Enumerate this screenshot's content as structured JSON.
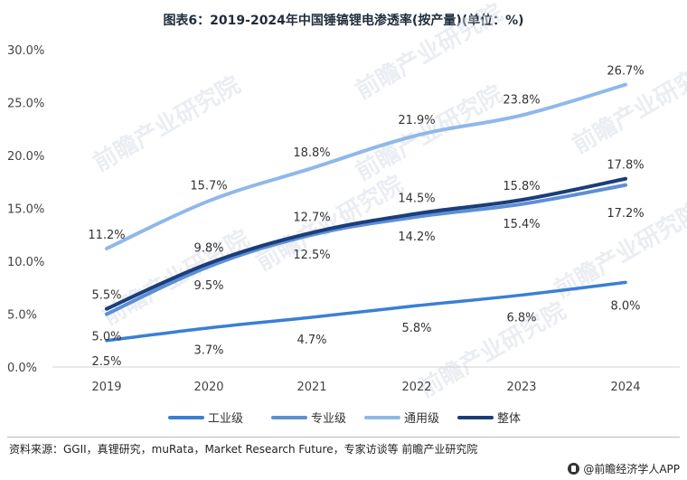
{
  "title": "图表6：2019-2024年中国锤镐锂电渗透率(按产量)(单位：%)",
  "footer": {
    "source": "资料来源：GGII，真锂研究，muRata，Market Research Future，专家访谈等 前瞻产业研究院",
    "brand": "@前瞻经济学人APP"
  },
  "watermark": "前瞻产业研究院",
  "chart_data": {
    "type": "line",
    "title": "图表6：2019-2024年中国锤镐锂电渗透率(按产量)(单位：%)",
    "xlabel": "",
    "ylabel": "",
    "categories": [
      "2019",
      "2020",
      "2021",
      "2022",
      "2023",
      "2024"
    ],
    "ylim": [
      0,
      30
    ],
    "yticks": [
      0,
      5,
      10,
      15,
      20,
      25,
      30
    ],
    "ytick_labels": [
      "0.0%",
      "5.0%",
      "10.0%",
      "15.0%",
      "20.0%",
      "25.0%",
      "30.0%"
    ],
    "grid": false,
    "legend_position": "bottom",
    "series": [
      {
        "name": "工业级",
        "color": "#3a7fd5",
        "values": [
          2.5,
          3.7,
          4.7,
          5.8,
          6.8,
          8.0
        ],
        "labels": [
          "2.5%",
          "3.7%",
          "4.7%",
          "5.8%",
          "6.8%",
          "8.0%"
        ]
      },
      {
        "name": "专业级",
        "color": "#5d8fd6",
        "values": [
          5.0,
          9.5,
          12.5,
          14.2,
          15.4,
          17.2
        ],
        "labels": [
          "5.0%",
          "9.5%",
          "12.5%",
          "14.2%",
          "15.4%",
          "17.2%"
        ]
      },
      {
        "name": "通用级",
        "color": "#8fb8ea",
        "values": [
          11.2,
          15.7,
          18.8,
          21.9,
          23.8,
          26.7
        ],
        "labels": [
          "11.2%",
          "15.7%",
          "18.8%",
          "21.9%",
          "23.8%",
          "26.7%"
        ]
      },
      {
        "name": "整体",
        "color": "#1b3d7a",
        "values": [
          5.5,
          9.8,
          12.7,
          14.5,
          15.8,
          17.8
        ],
        "labels": [
          "5.5%",
          "9.8%",
          "12.7%",
          "14.5%",
          "15.8%",
          "17.8%"
        ]
      }
    ]
  }
}
